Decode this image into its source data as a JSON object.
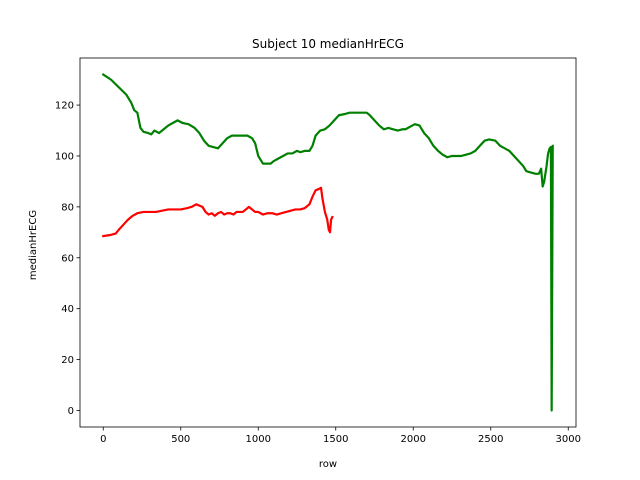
{
  "chart_data": {
    "type": "line",
    "title": "Subject 10 medianHrECG",
    "xlabel": "row",
    "ylabel": "medianHrECG",
    "xlim": [
      -150,
      3050
    ],
    "ylim": [
      -6.5,
      138.5
    ],
    "xticks": [
      0,
      500,
      1000,
      1500,
      2000,
      2500,
      3000
    ],
    "yticks": [
      0,
      20,
      40,
      60,
      80,
      100,
      120
    ],
    "grid": false,
    "legend": "none",
    "series": [
      {
        "color": "#008000",
        "points": [
          [
            0,
            132
          ],
          [
            50,
            130
          ],
          [
            100,
            127
          ],
          [
            150,
            124
          ],
          [
            180,
            121
          ],
          [
            200,
            118
          ],
          [
            220,
            117
          ],
          [
            240,
            111
          ],
          [
            260,
            109.5
          ],
          [
            290,
            109
          ],
          [
            310,
            108.5
          ],
          [
            330,
            110
          ],
          [
            360,
            109
          ],
          [
            380,
            110
          ],
          [
            400,
            111
          ],
          [
            420,
            112
          ],
          [
            450,
            113
          ],
          [
            480,
            114
          ],
          [
            510,
            113
          ],
          [
            550,
            112.5
          ],
          [
            590,
            111
          ],
          [
            620,
            109
          ],
          [
            650,
            106
          ],
          [
            680,
            104
          ],
          [
            710,
            103.5
          ],
          [
            740,
            103
          ],
          [
            770,
            105
          ],
          [
            800,
            107
          ],
          [
            830,
            108
          ],
          [
            880,
            108
          ],
          [
            930,
            108
          ],
          [
            960,
            107
          ],
          [
            980,
            105
          ],
          [
            1000,
            100
          ],
          [
            1030,
            97
          ],
          [
            1080,
            97
          ],
          [
            1100,
            98
          ],
          [
            1130,
            99
          ],
          [
            1160,
            100
          ],
          [
            1190,
            101
          ],
          [
            1220,
            101
          ],
          [
            1250,
            102
          ],
          [
            1270,
            101.5
          ],
          [
            1300,
            102
          ],
          [
            1330,
            102
          ],
          [
            1350,
            104
          ],
          [
            1370,
            108
          ],
          [
            1400,
            110
          ],
          [
            1430,
            110.5
          ],
          [
            1460,
            112
          ],
          [
            1490,
            114
          ],
          [
            1520,
            116
          ],
          [
            1560,
            116.5
          ],
          [
            1590,
            117
          ],
          [
            1620,
            117
          ],
          [
            1660,
            117
          ],
          [
            1700,
            117
          ],
          [
            1720,
            116
          ],
          [
            1750,
            114
          ],
          [
            1780,
            112
          ],
          [
            1810,
            110.5
          ],
          [
            1840,
            111
          ],
          [
            1870,
            110.5
          ],
          [
            1900,
            110
          ],
          [
            1930,
            110.5
          ],
          [
            1950,
            110.5
          ],
          [
            1980,
            111.5
          ],
          [
            2010,
            112.5
          ],
          [
            2040,
            112
          ],
          [
            2070,
            109
          ],
          [
            2100,
            107
          ],
          [
            2130,
            104
          ],
          [
            2160,
            102
          ],
          [
            2190,
            100.5
          ],
          [
            2220,
            99.5
          ],
          [
            2250,
            100
          ],
          [
            2280,
            100
          ],
          [
            2310,
            100
          ],
          [
            2340,
            100.5
          ],
          [
            2370,
            101
          ],
          [
            2400,
            102
          ],
          [
            2430,
            104
          ],
          [
            2460,
            106
          ],
          [
            2490,
            106.5
          ],
          [
            2530,
            106
          ],
          [
            2560,
            104
          ],
          [
            2590,
            103
          ],
          [
            2620,
            102
          ],
          [
            2650,
            100
          ],
          [
            2680,
            98
          ],
          [
            2710,
            96
          ],
          [
            2730,
            94
          ],
          [
            2760,
            93.5
          ],
          [
            2790,
            93
          ],
          [
            2810,
            93
          ],
          [
            2825,
            95
          ],
          [
            2835,
            88
          ],
          [
            2845,
            90
          ],
          [
            2860,
            96
          ],
          [
            2870,
            101
          ],
          [
            2880,
            103
          ],
          [
            2888,
            103.5
          ],
          [
            2893,
            0
          ],
          [
            2900,
            104
          ]
        ]
      },
      {
        "color": "#ff0000",
        "points": [
          [
            0,
            68.5
          ],
          [
            50,
            69
          ],
          [
            80,
            69.5
          ],
          [
            100,
            71
          ],
          [
            130,
            73
          ],
          [
            160,
            75
          ],
          [
            190,
            76.5
          ],
          [
            220,
            77.5
          ],
          [
            260,
            78
          ],
          [
            300,
            78
          ],
          [
            340,
            78
          ],
          [
            380,
            78.5
          ],
          [
            420,
            79
          ],
          [
            460,
            79
          ],
          [
            500,
            79
          ],
          [
            540,
            79.5
          ],
          [
            570,
            80
          ],
          [
            600,
            81
          ],
          [
            620,
            80.5
          ],
          [
            640,
            80
          ],
          [
            660,
            78
          ],
          [
            680,
            77
          ],
          [
            700,
            77.5
          ],
          [
            720,
            76.5
          ],
          [
            740,
            77.5
          ],
          [
            760,
            78
          ],
          [
            780,
            77
          ],
          [
            800,
            77.5
          ],
          [
            820,
            77.5
          ],
          [
            840,
            77
          ],
          [
            860,
            78
          ],
          [
            880,
            78
          ],
          [
            900,
            78
          ],
          [
            920,
            79
          ],
          [
            940,
            80
          ],
          [
            960,
            79
          ],
          [
            980,
            78
          ],
          [
            1000,
            78
          ],
          [
            1030,
            77
          ],
          [
            1060,
            77.5
          ],
          [
            1090,
            77.5
          ],
          [
            1120,
            77
          ],
          [
            1150,
            77.5
          ],
          [
            1180,
            78
          ],
          [
            1210,
            78.5
          ],
          [
            1240,
            79
          ],
          [
            1270,
            79
          ],
          [
            1300,
            79.5
          ],
          [
            1330,
            81
          ],
          [
            1350,
            84
          ],
          [
            1370,
            86.5
          ],
          [
            1390,
            87
          ],
          [
            1405,
            87.5
          ],
          [
            1415,
            83
          ],
          [
            1430,
            78
          ],
          [
            1445,
            75
          ],
          [
            1455,
            71
          ],
          [
            1463,
            70
          ],
          [
            1470,
            75
          ],
          [
            1478,
            76
          ]
        ]
      }
    ]
  }
}
